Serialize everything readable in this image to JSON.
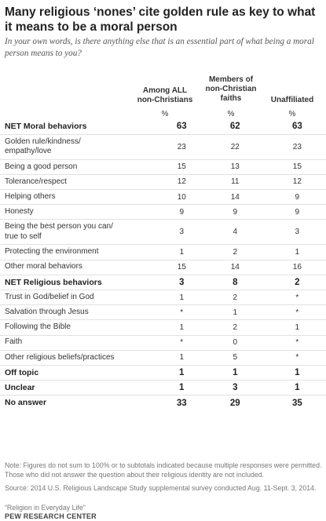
{
  "chart_data": {
    "type": "table",
    "title": "Many religious ‘nones’ cite golden rule as key to what it means to be a moral person",
    "subtitle": "In your own words, is there anything else that is an essential part of what being a moral person means to you?",
    "columns": [
      {
        "label_lines": [
          "Among ALL",
          "non-Christians"
        ],
        "unit": "%"
      },
      {
        "label_lines": [
          "Members of",
          "non-Christian",
          "faiths"
        ],
        "unit": "%"
      },
      {
        "label_lines": [
          "Unaffiliated"
        ],
        "unit": "%"
      }
    ],
    "rows": [
      {
        "label_lines": [
          "NET Moral behaviors"
        ],
        "values": [
          "63",
          "62",
          "63"
        ],
        "bold": true
      },
      {
        "label_lines": [
          "Golden rule/kindness/",
          "empathy/love"
        ],
        "values": [
          "23",
          "22",
          "23"
        ],
        "bold": false
      },
      {
        "label_lines": [
          "Being a good person"
        ],
        "values": [
          "15",
          "13",
          "15"
        ],
        "bold": false
      },
      {
        "label_lines": [
          "Tolerance/respect"
        ],
        "values": [
          "12",
          "11",
          "12"
        ],
        "bold": false
      },
      {
        "label_lines": [
          "Helping others"
        ],
        "values": [
          "10",
          "14",
          "9"
        ],
        "bold": false
      },
      {
        "label_lines": [
          "Honesty"
        ],
        "values": [
          "9",
          "9",
          "9"
        ],
        "bold": false
      },
      {
        "label_lines": [
          "Being the best person you can/",
          "true to self"
        ],
        "values": [
          "3",
          "4",
          "3"
        ],
        "bold": false
      },
      {
        "label_lines": [
          "Protecting the environment"
        ],
        "values": [
          "1",
          "2",
          "1"
        ],
        "bold": false
      },
      {
        "label_lines": [
          "Other moral behaviors"
        ],
        "values": [
          "15",
          "14",
          "16"
        ],
        "bold": false
      },
      {
        "label_lines": [
          "NET Religious behaviors"
        ],
        "values": [
          "3",
          "8",
          "2"
        ],
        "bold": true
      },
      {
        "label_lines": [
          "Trust in God/belief in God"
        ],
        "values": [
          "1",
          "2",
          "*"
        ],
        "bold": false
      },
      {
        "label_lines": [
          "Salvation through Jesus"
        ],
        "values": [
          "*",
          "1",
          "*"
        ],
        "bold": false
      },
      {
        "label_lines": [
          "Following the Bible"
        ],
        "values": [
          "1",
          "2",
          "1"
        ],
        "bold": false
      },
      {
        "label_lines": [
          "Faith"
        ],
        "values": [
          "*",
          "0",
          "*"
        ],
        "bold": false
      },
      {
        "label_lines": [
          "Other religious beliefs/practices"
        ],
        "values": [
          "1",
          "5",
          "*"
        ],
        "bold": false
      },
      {
        "label_lines": [
          "Off topic"
        ],
        "values": [
          "1",
          "1",
          "1"
        ],
        "bold": true
      },
      {
        "label_lines": [
          "Unclear"
        ],
        "values": [
          "1",
          "3",
          "1"
        ],
        "bold": true
      },
      {
        "label_lines": [
          "No answer"
        ],
        "values": [
          "33",
          "29",
          "35"
        ],
        "bold": true
      }
    ],
    "note": "Note: Figures do not sum to 100% or to subtotals indicated because multiple responses were permitted. Those who did not answer the question about their religious identity are not included.",
    "source": "Source: 2014 U.S. Religious Landscape Study supplemental survey conducted Aug. 11-Sept. 3, 2014.",
    "report": "“Religion in Everyday Life”",
    "org": "PEW RESEARCH CENTER"
  }
}
